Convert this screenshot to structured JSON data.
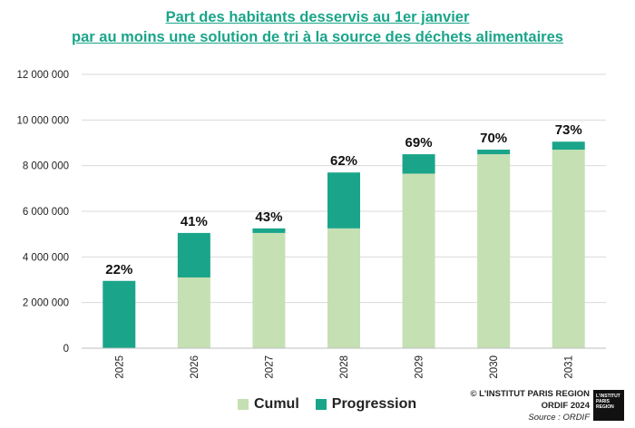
{
  "title_line1": "Part des habitants desservis au 1er janvier",
  "title_line2": "par au moins une solution de tri à la source des déchets alimentaires",
  "colors": {
    "cumul": "#c5e0b3",
    "progression": "#1aa58a",
    "title": "#1aa58a"
  },
  "legend": {
    "cumul": "Cumul",
    "progression": "Progression"
  },
  "credit": {
    "line1": "© L'INSTITUT PARIS REGION",
    "line2": "ORDIF 2024",
    "line3": "Source : ORDIF"
  },
  "logo_text": "L'INSTITUT PARIS REGION",
  "chart_data": {
    "type": "bar",
    "stacked": true,
    "categories": [
      "2025",
      "2026",
      "2027",
      "2028",
      "2029",
      "2030",
      "2031"
    ],
    "series": [
      {
        "name": "Cumul",
        "values": [
          0,
          3100000,
          5050000,
          5250000,
          7650000,
          8500000,
          8700000
        ]
      },
      {
        "name": "Progression",
        "values": [
          2950000,
          1950000,
          200000,
          2450000,
          850000,
          200000,
          350000
        ]
      }
    ],
    "data_labels": [
      "22%",
      "41%",
      "43%",
      "62%",
      "69%",
      "70%",
      "73%"
    ],
    "yticks": [
      "0",
      "2 000 000",
      "4 000 000",
      "6 000 000",
      "8 000 000",
      "10 000 000",
      "12 000 000"
    ],
    "ylim": [
      0,
      12000000
    ],
    "grid": true,
    "legend_position": "bottom"
  }
}
